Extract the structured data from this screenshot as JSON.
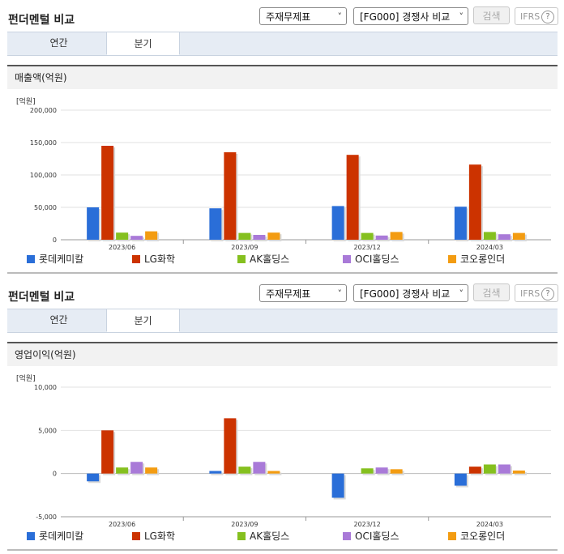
{
  "panels": [
    {
      "title": "펀더멘털 비교",
      "select1": "주재무제표",
      "select2": "[FG000] 경쟁사 비교",
      "search_label": "검색",
      "ifrs_label": "IFRS",
      "ifrs_help": "?",
      "tabs": [
        {
          "label": "연간"
        },
        {
          "label": "분기"
        }
      ],
      "active_tab": 1,
      "section_title": "매출액(억원)",
      "unit_label": "[억원]"
    },
    {
      "title": "펀더멘털 비교",
      "select1": "주재무제표",
      "select2": "[FG000] 경쟁사 비교",
      "search_label": "검색",
      "ifrs_label": "IFRS",
      "ifrs_help": "?",
      "tabs": [
        {
          "label": "연간"
        },
        {
          "label": "분기"
        }
      ],
      "active_tab": 1,
      "section_title": "영업이익(억원)",
      "unit_label": "[억원]"
    }
  ],
  "chart_data": [
    {
      "type": "bar",
      "categories": [
        "2023/06",
        "2023/09",
        "2023/12",
        "2024/03"
      ],
      "ylim": [
        0,
        200000
      ],
      "yticks": [
        0,
        50000,
        100000,
        150000,
        200000
      ],
      "ytick_labels": [
        "0",
        "50,000",
        "100,000",
        "150,000",
        "200,000"
      ],
      "ylabel": "[억원]",
      "legend_position": "bottom",
      "series": [
        {
          "name": "롯데케미칼",
          "color": "#2a6ed8",
          "values": [
            50000,
            48500,
            52000,
            51000
          ]
        },
        {
          "name": "LG화학",
          "color": "#cc3300",
          "values": [
            145000,
            135000,
            131000,
            116000
          ]
        },
        {
          "name": "AK홀딩스",
          "color": "#85c01f",
          "values": [
            11000,
            10500,
            10500,
            12000
          ]
        },
        {
          "name": "OCI홀딩스",
          "color": "#a97ad8",
          "values": [
            6000,
            7500,
            6500,
            8500
          ]
        },
        {
          "name": "코오롱인더",
          "color": "#f39c12",
          "values": [
            13000,
            11000,
            12000,
            10500
          ]
        }
      ]
    },
    {
      "type": "bar",
      "categories": [
        "2023/06",
        "2023/09",
        "2023/12",
        "2024/03"
      ],
      "ylim": [
        -5000,
        10000
      ],
      "yticks": [
        -5000,
        0,
        5000,
        10000
      ],
      "ytick_labels": [
        "-5,000",
        "0",
        "5,000",
        "10,000"
      ],
      "ylabel": "[억원]",
      "legend_position": "bottom",
      "series": [
        {
          "name": "롯데케미칼",
          "color": "#2a6ed8",
          "values": [
            -900,
            300,
            -2800,
            -1400
          ]
        },
        {
          "name": "LG화학",
          "color": "#cc3300",
          "values": [
            5000,
            6400,
            0,
            800
          ]
        },
        {
          "name": "AK홀딩스",
          "color": "#85c01f",
          "values": [
            700,
            800,
            600,
            1050
          ]
        },
        {
          "name": "OCI홀딩스",
          "color": "#a97ad8",
          "values": [
            1350,
            1350,
            700,
            1050
          ]
        },
        {
          "name": "코오롱인더",
          "color": "#f39c12",
          "values": [
            700,
            300,
            500,
            350
          ]
        }
      ]
    }
  ]
}
